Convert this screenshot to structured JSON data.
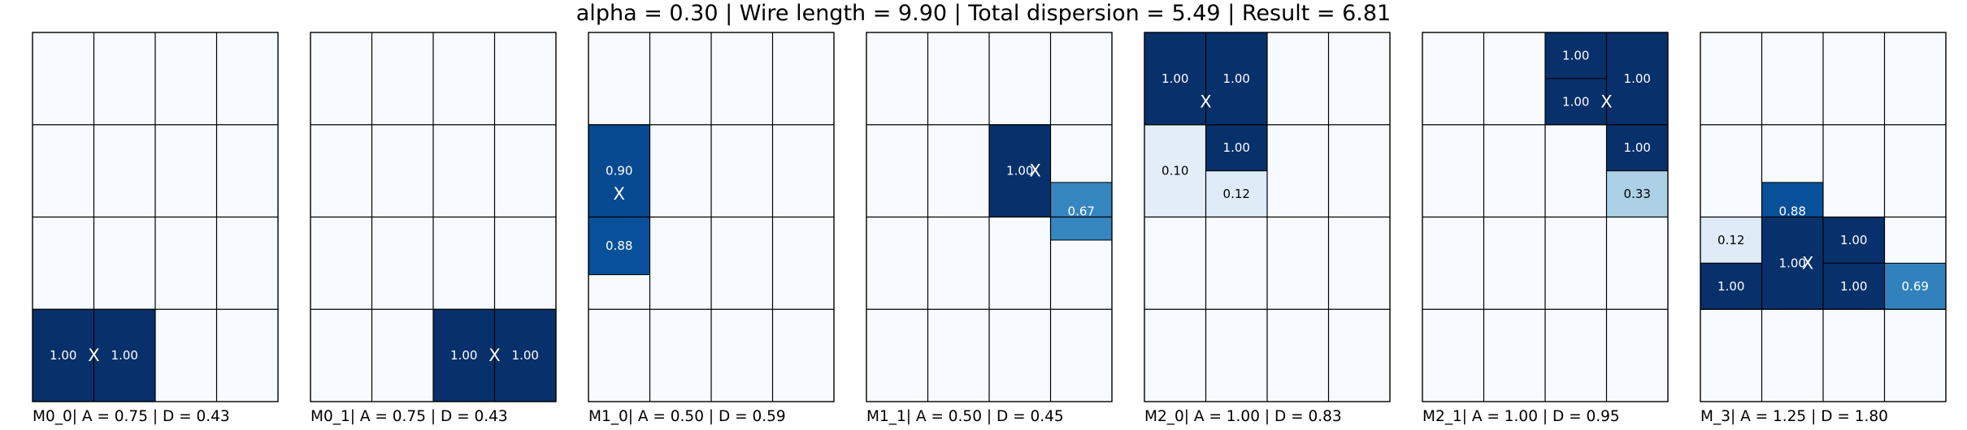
{
  "title": "alpha = 0.30 | Wire length = 9.90 | Total dispersion = 5.49 | Result = 6.81",
  "chart_data": {
    "type": "heatmap",
    "colormap": "Blues",
    "value_range": [
      0,
      1
    ],
    "grid": {
      "rows": 4,
      "cols": 4,
      "sub_rows": 8,
      "sub_cols": 4
    },
    "center_marker": "X",
    "panels": [
      {
        "label": "M0_0| A = 0.75 | D = 0.43",
        "center": {
          "row": 3.5,
          "col": 1.0
        },
        "cells": [
          {
            "row": 3,
            "col": 0,
            "srow": 0,
            "h": 8,
            "value": 1.0,
            "text": "1.00"
          },
          {
            "row": 3,
            "col": 1,
            "srow": 0,
            "h": 8,
            "value": 1.0,
            "text": "1.00"
          }
        ]
      },
      {
        "label": "M0_1| A = 0.75 | D = 0.43",
        "center": {
          "row": 3.5,
          "col": 3.0
        },
        "cells": [
          {
            "row": 3,
            "col": 2,
            "srow": 0,
            "h": 8,
            "value": 1.0,
            "text": "1.00"
          },
          {
            "row": 3,
            "col": 3,
            "srow": 0,
            "h": 8,
            "value": 1.0,
            "text": "1.00"
          }
        ]
      },
      {
        "label": "M1_0| A = 0.50 | D = 0.59",
        "center": {
          "row": 1.75,
          "col": 0.5
        },
        "cells": [
          {
            "row": 1,
            "col": 0,
            "srow": 0,
            "h": 8,
            "value": 0.9,
            "text": "0.90"
          },
          {
            "row": 2,
            "col": 0,
            "srow": 0,
            "h": 5,
            "value": 0.88,
            "text": "0.88"
          }
        ]
      },
      {
        "label": "M1_1| A = 0.50 | D = 0.45",
        "center": {
          "row": 1.5,
          "col": 2.75
        },
        "cells": [
          {
            "row": 1,
            "col": 2,
            "srow": 0,
            "h": 8,
            "value": 1.0,
            "text": "1.00"
          },
          {
            "row": 1,
            "col": 3,
            "srow": 5,
            "h": 5,
            "value": 0.67,
            "text": "0.67"
          }
        ]
      },
      {
        "label": "M2_0| A = 1.00 | D = 0.83",
        "center": {
          "row": 0.75,
          "col": 1.0
        },
        "cells": [
          {
            "row": 0,
            "col": 0,
            "srow": 0,
            "h": 8,
            "value": 1.0,
            "text": "1.00"
          },
          {
            "row": 0,
            "col": 1,
            "srow": 0,
            "h": 8,
            "value": 1.0,
            "text": "1.00"
          },
          {
            "row": 1,
            "col": 0,
            "srow": 0,
            "h": 8,
            "value": 0.1,
            "text": "0.10"
          },
          {
            "row": 1,
            "col": 1,
            "srow": 0,
            "h": 4,
            "value": 1.0,
            "text": "1.00"
          },
          {
            "row": 1,
            "col": 1,
            "srow": 4,
            "h": 4,
            "value": 0.12,
            "text": "0.12"
          }
        ]
      },
      {
        "label": "M2_1| A = 1.00 | D = 0.95",
        "center": {
          "row": 0.75,
          "col": 3.0
        },
        "cells": [
          {
            "row": 0,
            "col": 2,
            "srow": 0,
            "h": 4,
            "value": 1.0,
            "text": "1.00"
          },
          {
            "row": 0,
            "col": 2,
            "srow": 4,
            "h": 4,
            "value": 1.0,
            "text": "1.00"
          },
          {
            "row": 0,
            "col": 3,
            "srow": 0,
            "h": 8,
            "value": 1.0,
            "text": "1.00"
          },
          {
            "row": 1,
            "col": 3,
            "srow": 0,
            "h": 4,
            "value": 1.0,
            "text": "1.00"
          },
          {
            "row": 1,
            "col": 3,
            "srow": 4,
            "h": 4,
            "value": 0.33,
            "text": "0.33"
          }
        ]
      },
      {
        "label": "M_3| A = 1.25 | D = 1.80",
        "center": {
          "row": 2.5,
          "col": 1.75
        },
        "cells": [
          {
            "row": 1,
            "col": 1,
            "srow": 5,
            "h": 5,
            "value": 0.88,
            "text": "0.88"
          },
          {
            "row": 2,
            "col": 0,
            "srow": 0,
            "h": 4,
            "value": 0.12,
            "text": "0.12"
          },
          {
            "row": 2,
            "col": 0,
            "srow": 4,
            "h": 4,
            "value": 1.0,
            "text": "1.00"
          },
          {
            "row": 2,
            "col": 1,
            "srow": 0,
            "h": 8,
            "value": 1.0,
            "text": "1.00"
          },
          {
            "row": 2,
            "col": 2,
            "srow": 0,
            "h": 4,
            "value": 1.0,
            "text": "1.00"
          },
          {
            "row": 2,
            "col": 2,
            "srow": 4,
            "h": 4,
            "value": 1.0,
            "text": "1.00"
          },
          {
            "row": 2,
            "col": 3,
            "srow": 4,
            "h": 4,
            "value": 0.69,
            "text": "0.69"
          }
        ]
      }
    ]
  }
}
